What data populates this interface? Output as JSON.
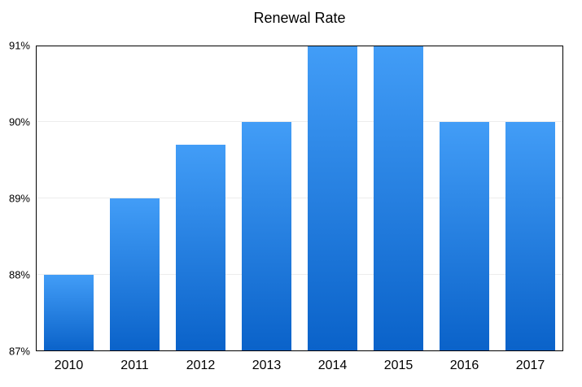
{
  "chart_data": {
    "type": "bar",
    "title": "Renewal Rate",
    "categories": [
      "2010",
      "2011",
      "2012",
      "2013",
      "2014",
      "2015",
      "2016",
      "2017"
    ],
    "values": [
      88,
      89,
      89.7,
      90,
      91,
      91,
      90,
      90
    ],
    "xlabel": "",
    "ylabel": "",
    "ylim": [
      87,
      91
    ],
    "ytick_values": [
      91,
      90,
      89,
      88,
      87
    ],
    "ytick_labels": [
      "91%",
      "90%",
      "89%",
      "88%",
      "87%"
    ],
    "grid": true,
    "legend": "none",
    "colors": {
      "bar_gradient_top": "#429DF7",
      "bar_gradient_bottom": "#0A62C9",
      "gridline": "#ececec",
      "axis_border": "#000000",
      "text": "#000000",
      "background": "#ffffff"
    }
  }
}
